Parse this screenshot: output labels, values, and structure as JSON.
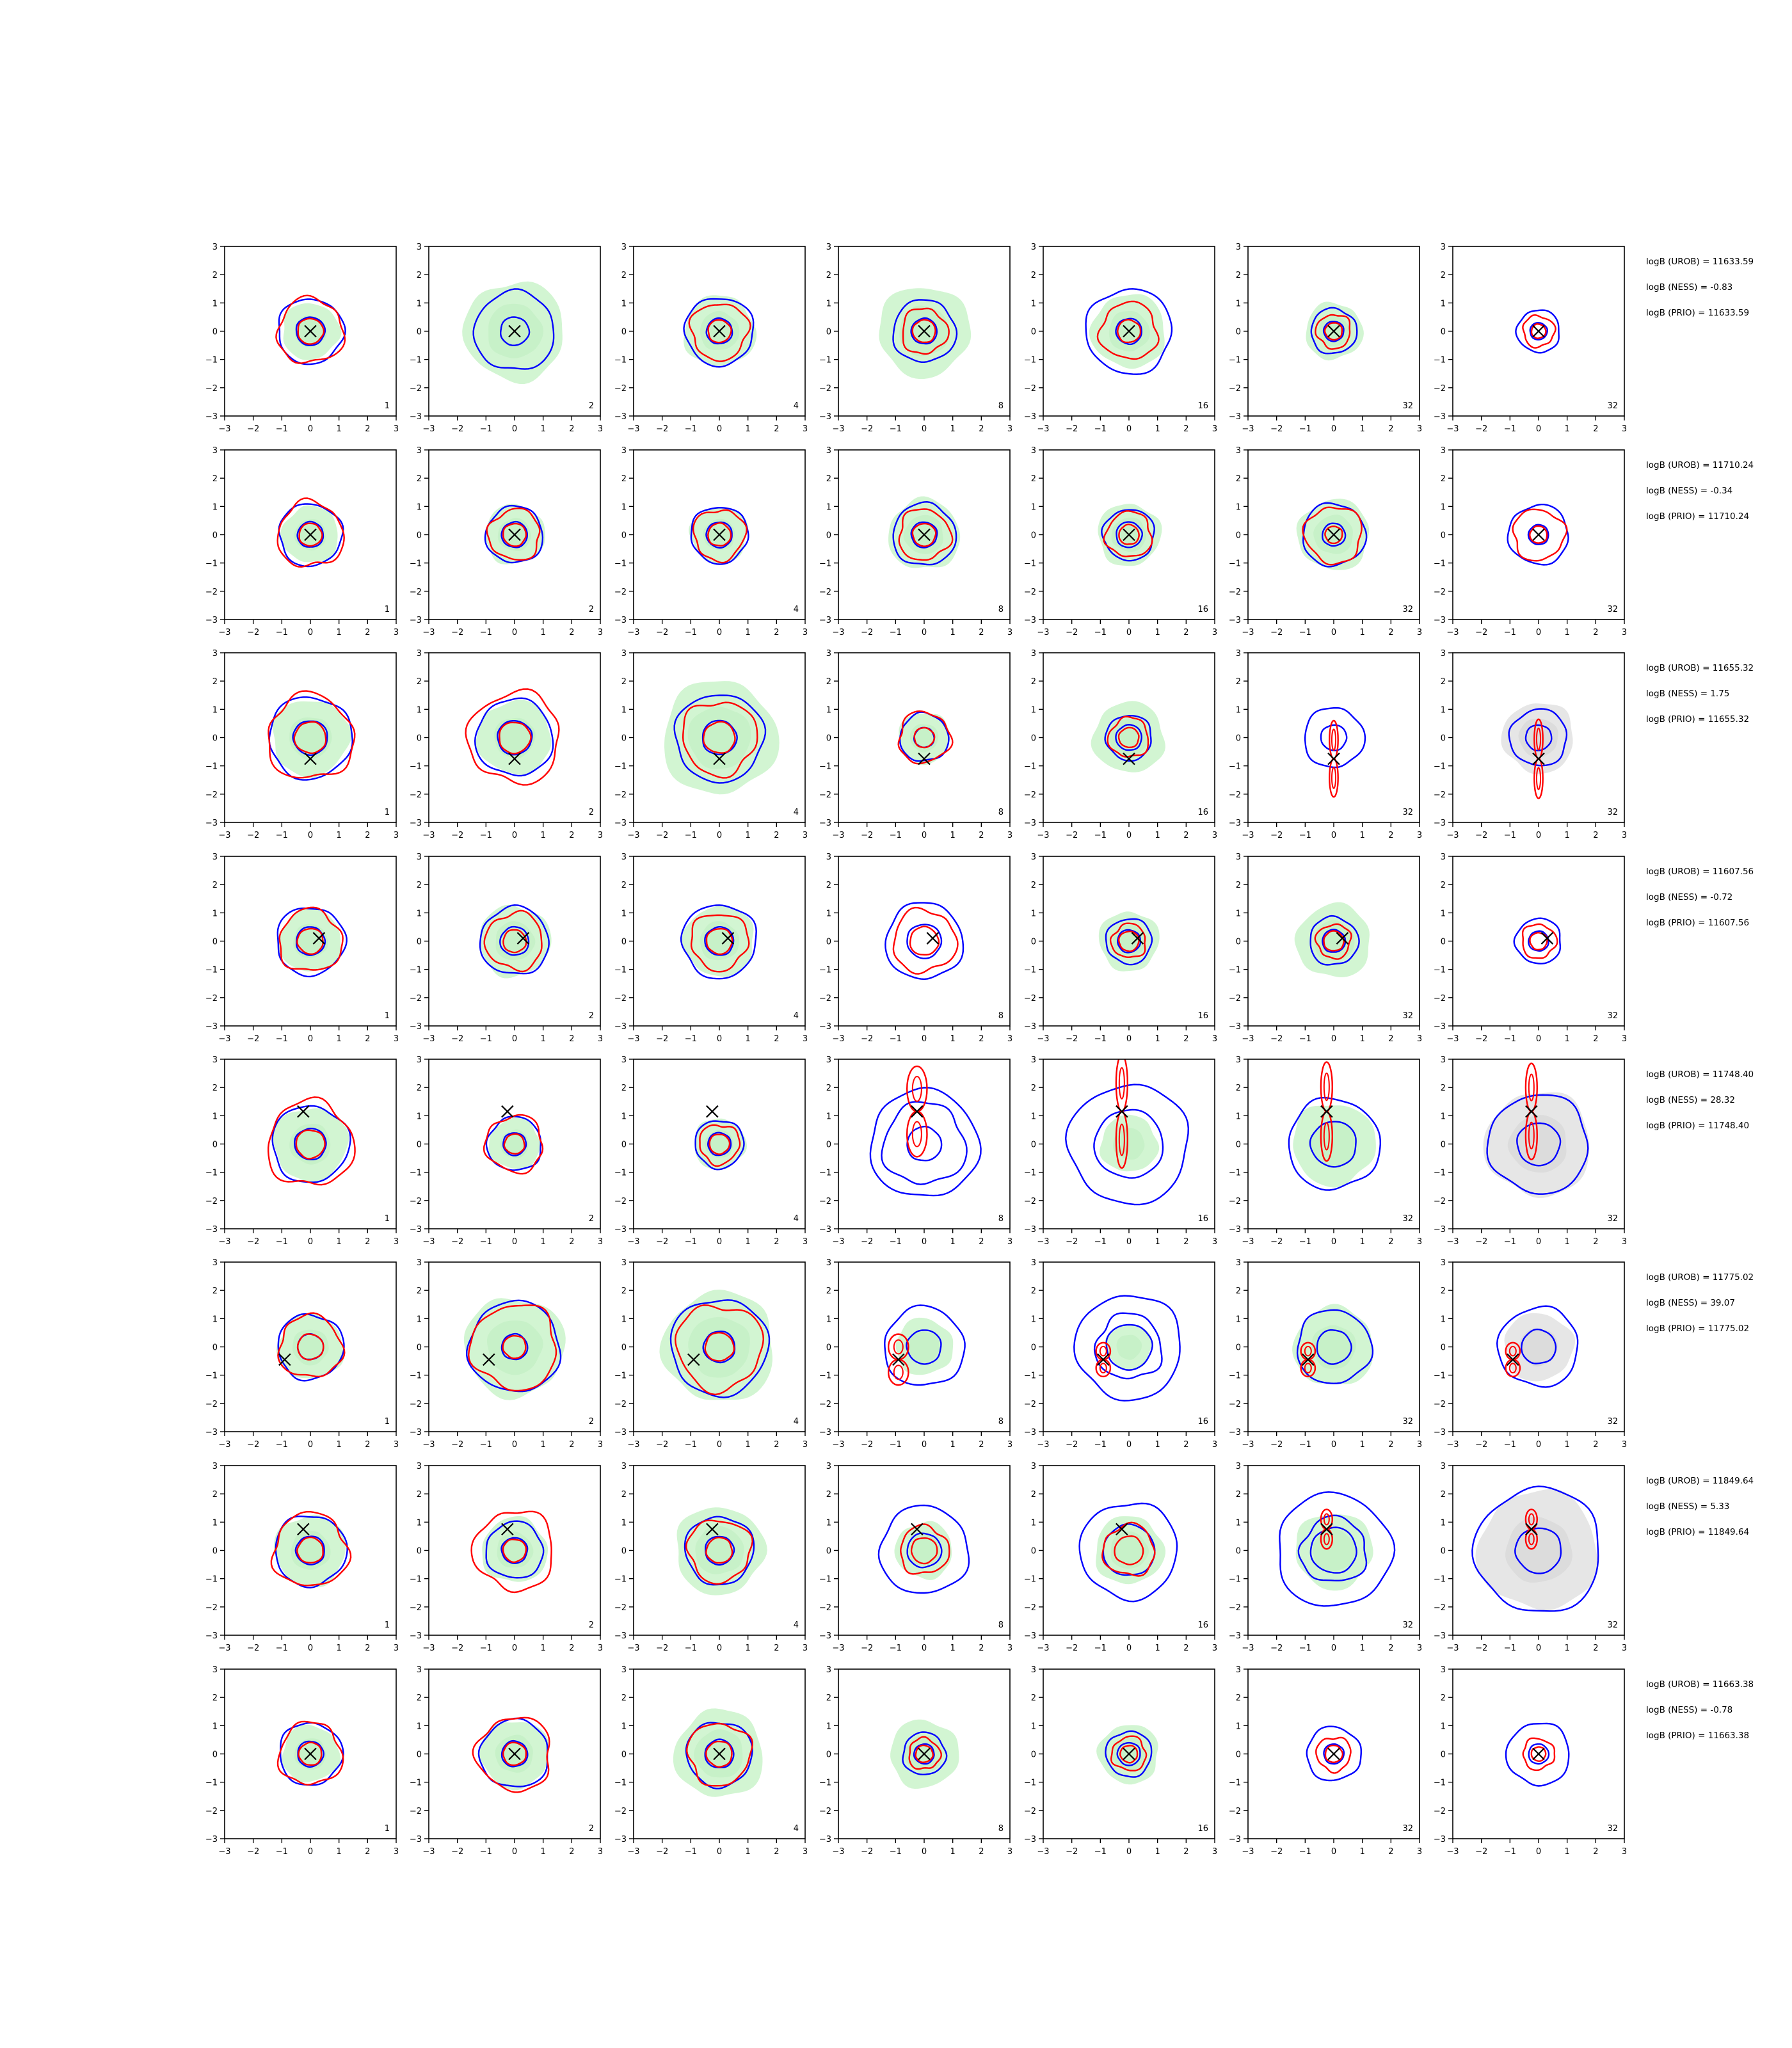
{
  "figure": {
    "background": "#ffffff",
    "colors": {
      "robust": "#ff0000",
      "ness": "#0000ff",
      "fill_green": "#d2f5d2",
      "fill_gray": "#e6e6e6",
      "marker": "#000000"
    }
  },
  "chart_data": {
    "type": "contour-grid",
    "rows": 8,
    "cols": 7,
    "xlim": [
      -3,
      3
    ],
    "ylim": [
      -3,
      3
    ],
    "xticks": [
      "−3",
      "−2",
      "−1",
      "0",
      "1",
      "2",
      "3"
    ],
    "yticks": [
      "3",
      "2",
      "1",
      "0",
      "−1",
      "−2",
      "−3"
    ],
    "panel_labels": [
      "1",
      "2",
      "4",
      "8",
      "16",
      "32",
      "32"
    ],
    "row_annotations": [
      {
        "urob": "logB (UROB) = 11633.59",
        "ness": "logB (NESS) = -0.83",
        "prio": "logB (PRIO) = 11633.59"
      },
      {
        "urob": "logB (UROB) = 11710.24",
        "ness": "logB (NESS) = -0.34",
        "prio": "logB (PRIO) = 11710.24"
      },
      {
        "urob": "logB (UROB) = 11655.32",
        "ness": "logB (NESS) = 1.75",
        "prio": "logB (PRIO) = 11655.32"
      },
      {
        "urob": "logB (UROB) = 11607.56",
        "ness": "logB (NESS) = -0.72",
        "prio": "logB (PRIO) = 11607.56"
      },
      {
        "urob": "logB (UROB) = 11748.40",
        "ness": "logB (NESS) = 28.32",
        "prio": "logB (PRIO) = 11748.40"
      },
      {
        "urob": "logB (UROB) = 11775.02",
        "ness": "logB (NESS) = 39.07",
        "prio": "logB (PRIO) = 11775.02"
      },
      {
        "urob": "logB (UROB) = 11849.64",
        "ness": "logB (NESS) = 5.33",
        "prio": "logB (PRIO) = 11849.64"
      },
      {
        "urob": "logB (UROB) = 11663.38",
        "ness": "logB (NESS) = -0.78",
        "prio": "logB (PRIO) = 11663.38"
      }
    ],
    "true_points": [
      {
        "x": 0.0,
        "y": 0.0
      },
      {
        "x": 0.0,
        "y": 0.0
      },
      {
        "x": 0.0,
        "y": -0.75
      },
      {
        "x": 0.3,
        "y": 0.1
      },
      {
        "x": -0.25,
        "y": 1.15
      },
      {
        "x": -0.9,
        "y": -0.45
      },
      {
        "x": -0.25,
        "y": 0.75
      },
      {
        "x": 0.0,
        "y": 0.0
      }
    ],
    "panels": [
      [
        {
          "g": 1.0,
          "bo": 1.15,
          "bi": 0.5,
          "ro": 1.15,
          "ri": 0.45
        },
        {
          "g": 1.75,
          "bo": 1.4,
          "bi": 0.5
        },
        {
          "g": 1.25,
          "bo": 1.2,
          "bi": 0.45,
          "ro": 1.0,
          "ri": 0.4
        },
        {
          "g": 1.6,
          "bo": 1.1,
          "bi": 0.45,
          "ro": 0.8,
          "ri": 0.4
        },
        {
          "g": 1.3,
          "bo": 1.5,
          "bi": 0.45,
          "ro": 1.0,
          "ri": 0.4
        },
        {
          "g": 1.0,
          "bo": 0.8,
          "bi": 0.35,
          "ro": 0.6,
          "ri": 0.3
        },
        {
          "g": 0.0,
          "bo": 0.75,
          "bi": 0.3,
          "ro": 0.55,
          "ri": 0.25
        }
      ],
      [
        {
          "g": 1.0,
          "bo": 1.1,
          "bi": 0.45,
          "ro": 1.15,
          "ri": 0.4
        },
        {
          "g": 1.05,
          "bo": 1.0,
          "bi": 0.45,
          "ro": 0.9,
          "ri": 0.4
        },
        {
          "g": 1.0,
          "bo": 1.0,
          "bi": 0.45,
          "ro": 0.9,
          "ri": 0.4
        },
        {
          "g": 1.25,
          "bo": 1.1,
          "bi": 0.45,
          "ro": 0.9,
          "ri": 0.4
        },
        {
          "g": 1.1,
          "bo": 0.9,
          "bi": 0.45,
          "ro": 0.8,
          "ri": 0.35
        },
        {
          "g": 1.25,
          "bo": 1.1,
          "bi": 0.4,
          "ro": 1.0,
          "ri": 0.3
        },
        {
          "g": 0.0,
          "bo": 1.05,
          "bi": 0.35,
          "ro": 0.9,
          "ri": 0.3
        }
      ],
      [
        {
          "g": 1.35,
          "bo": 1.45,
          "bi": 0.6,
          "ro": 1.5,
          "ri": 0.55
        },
        {
          "g": 1.3,
          "bo": 1.35,
          "bi": 0.6,
          "ro": 1.6,
          "ri": 0.55
        },
        {
          "g": 2.0,
          "bo": 1.55,
          "bi": 0.6,
          "ro": 1.3,
          "ri": 0.55
        },
        {
          "g": 0.9,
          "bo": 0.85,
          "bi": 0.35,
          "ro": 0.9,
          "ri": 0.35
        },
        {
          "g": 1.25,
          "bo": 0.8,
          "bi": 0.45,
          "ro": 0.7,
          "ri": 0.35
        },
        {
          "g": 0.0,
          "bo": 1.05,
          "bi": 0.45,
          "rv": [
            0.15,
            1.35
          ]
        },
        {
          "g": 1.25,
          "gc": "gray",
          "bo": 1.0,
          "bi": 0.45,
          "rv": [
            0.15,
            1.4
          ]
        }
      ],
      [
        {
          "g": 1.1,
          "bo": 1.2,
          "bi": 0.5,
          "ro": 1.1,
          "ri": 0.45
        },
        {
          "g": 1.25,
          "bo": 1.2,
          "bi": 0.5,
          "ro": 1.0,
          "ri": 0.4
        },
        {
          "g": 1.25,
          "bo": 1.3,
          "bi": 0.5,
          "ro": 1.0,
          "ri": 0.45
        },
        {
          "g": 0.0,
          "bo": 1.35,
          "bi": 0.6,
          "ro": 1.1,
          "ri": 0.5
        },
        {
          "g": 1.05,
          "bo": 0.8,
          "bi": 0.4,
          "ro": 0.6,
          "ri": 0.35
        },
        {
          "g": 1.3,
          "bo": 0.85,
          "bi": 0.4,
          "ro": 0.6,
          "ri": 0.35
        },
        {
          "g": 0.0,
          "bo": 0.8,
          "bi": 0.35,
          "ro": 0.6,
          "ri": 0.3
        }
      ],
      [
        {
          "g": 1.3,
          "bo": 1.35,
          "bi": 0.55,
          "ro": 1.5,
          "ri": 0.5
        },
        {
          "g": 0.9,
          "bo": 0.95,
          "bi": 0.4,
          "ro": 1.0,
          "ri": 0.35
        },
        {
          "g": 0.9,
          "bo": 0.85,
          "bi": 0.4,
          "ro": 0.7,
          "ri": 0.35
        },
        {
          "g": 0.0,
          "bo": 1.9,
          "bo2": 2.0,
          "bi": 0.6,
          "rv": [
            0.35,
            1.6
          ]
        },
        {
          "g": 1.0,
          "bo": 2.1,
          "bi": 1.2,
          "rv": [
            0.2,
            2.0
          ]
        },
        {
          "g": 1.45,
          "bo": 1.6,
          "bi": 0.8,
          "rv": [
            0.2,
            1.75
          ]
        },
        {
          "g": 1.85,
          "gc": "gray",
          "bo": 1.75,
          "bi": 0.75,
          "rv": [
            0.2,
            1.7
          ]
        }
      ],
      [
        {
          "g": 1.15,
          "bo": 1.15,
          "bi": 0.45,
          "ro": 1.1,
          "ri": 0.45
        },
        {
          "g": 1.75,
          "bo": 1.6,
          "bi": 0.45,
          "ro": 1.5,
          "ri": 0.4
        },
        {
          "g": 1.95,
          "bo": 1.7,
          "bi": 0.55,
          "ro": 1.5,
          "ri": 0.5
        },
        {
          "g": 1.0,
          "bo": 1.4,
          "bi": 0.6,
          "rv": [
            0.35,
            0.9
          ]
        },
        {
          "g": 0.8,
          "bo": 1.85,
          "bo2": 1.6,
          "bi": 0.8,
          "rv": [
            0.25,
            0.6
          ]
        },
        {
          "g": 1.4,
          "bo": 1.3,
          "bi": 0.6,
          "rv": [
            0.25,
            0.6
          ]
        },
        {
          "g": 1.2,
          "gc": "gray",
          "bo": 1.4,
          "bi": 0.6,
          "rv": [
            0.25,
            0.6
          ]
        }
      ],
      [
        {
          "g": 1.25,
          "bo": 1.25,
          "bi": 0.5,
          "ro": 1.3,
          "ri": 0.45
        },
        {
          "g": 1.15,
          "bo": 1.0,
          "bi": 0.45,
          "ro": 1.4,
          "ri": 0.4
        },
        {
          "g": 1.55,
          "bo": 1.2,
          "bi": 0.5,
          "ro": 1.1,
          "ri": 0.45
        },
        {
          "g": 1.0,
          "bo": 1.55,
          "bi": 0.6,
          "ro": 0.85,
          "ri": 0.45
        },
        {
          "g": 1.2,
          "bo": 1.7,
          "bi": 0.9,
          "ro": 0.9,
          "ri": 0.5
        },
        {
          "g": 1.35,
          "bo": 2.0,
          "bo2": 1.6,
          "bi": 0.8,
          "rv": [
            0.2,
            0.7
          ]
        },
        {
          "g": 2.1,
          "gc": "gray",
          "bo": 2.2,
          "bi": 0.8,
          "rv": [
            0.2,
            0.7
          ]
        }
      ],
      [
        {
          "g": 1.0,
          "bo": 1.1,
          "bi": 0.45,
          "ro": 1.1,
          "ri": 0.4
        },
        {
          "g": 1.2,
          "bo": 1.2,
          "bi": 0.45,
          "ro": 1.3,
          "ri": 0.4
        },
        {
          "g": 1.55,
          "bo": 1.15,
          "bi": 0.5,
          "ro": 1.1,
          "ri": 0.45
        },
        {
          "g": 1.2,
          "bo": 0.75,
          "bi": 0.35,
          "ro": 0.55,
          "ri": 0.3
        },
        {
          "g": 1.05,
          "bo": 0.8,
          "bi": 0.4,
          "ro": 0.6,
          "ri": 0.3
        },
        {
          "g": 0.0,
          "bo": 0.95,
          "bi": 0.35,
          "ro": 0.6,
          "ri": 0.3
        },
        {
          "g": 0.0,
          "bo": 1.1,
          "bi": 0.35,
          "ro": 0.55,
          "ri": 0.25
        }
      ]
    ]
  }
}
